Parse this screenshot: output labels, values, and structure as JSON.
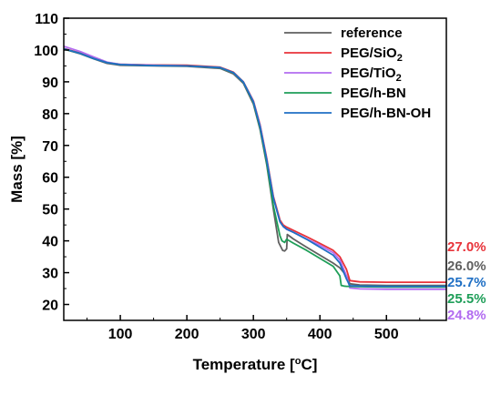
{
  "chart_data": {
    "type": "line",
    "title": "",
    "xlabel": "Temperature [",
    "xlabel_sup": "o",
    "xlabel_end": "C]",
    "ylabel": "Mass [%]",
    "xlim": [
      15,
      590
    ],
    "ylim": [
      15,
      110
    ],
    "xticks": [
      100,
      200,
      300,
      400,
      500
    ],
    "yticks": [
      20,
      30,
      40,
      50,
      60,
      70,
      80,
      90,
      100,
      110
    ],
    "grid": false,
    "legend": "top-right",
    "series": [
      {
        "name": "reference",
        "color": "#606060",
        "end_label": "26.0%",
        "x": [
          15,
          40,
          60,
          80,
          100,
          150,
          200,
          250,
          270,
          285,
          300,
          310,
          320,
          330,
          338,
          344,
          347,
          350,
          351,
          360,
          380,
          400,
          420,
          430,
          440,
          445,
          460,
          500,
          550,
          590
        ],
        "y": [
          100.3,
          98.8,
          97.2,
          95.8,
          95.2,
          95.0,
          94.9,
          94.2,
          92.5,
          89.5,
          83.0,
          75.0,
          64.0,
          50.0,
          39.5,
          37.0,
          36.8,
          37.5,
          42.0,
          40.6,
          38.0,
          35.5,
          33.0,
          31.5,
          29.0,
          26.5,
          26.1,
          26.0,
          26.0,
          26.0
        ]
      },
      {
        "name": "PEG/SiO",
        "name_sub": "2",
        "color": "#e8333a",
        "end_label": "27.0%",
        "x": [
          15,
          40,
          60,
          80,
          100,
          150,
          200,
          250,
          270,
          285,
          300,
          310,
          320,
          330,
          340,
          345,
          350,
          360,
          380,
          400,
          420,
          430,
          440,
          445,
          460,
          500,
          550,
          590
        ],
        "y": [
          100.5,
          99.0,
          97.4,
          96.0,
          95.5,
          95.3,
          95.2,
          94.6,
          93.0,
          90.0,
          84.0,
          76.5,
          66.0,
          54.0,
          46.5,
          45.0,
          44.3,
          43.3,
          41.3,
          39.2,
          37.0,
          35.0,
          31.0,
          27.5,
          27.1,
          27.0,
          27.0,
          27.0
        ]
      },
      {
        "name": "PEG/TiO",
        "name_sub": "2",
        "color": "#b26bf0",
        "end_label": "24.8%",
        "x": [
          15,
          40,
          60,
          80,
          100,
          150,
          200,
          250,
          270,
          285,
          300,
          310,
          320,
          330,
          340,
          345,
          350,
          360,
          380,
          400,
          420,
          430,
          440,
          445,
          460,
          500,
          550,
          590
        ],
        "y": [
          101.2,
          99.5,
          97.8,
          96.2,
          95.5,
          95.2,
          95.0,
          94.4,
          92.8,
          89.8,
          83.8,
          76.2,
          65.5,
          53.5,
          46.0,
          44.5,
          43.6,
          42.7,
          40.6,
          38.6,
          36.3,
          34.0,
          29.0,
          25.2,
          24.9,
          24.8,
          24.8,
          24.8
        ]
      },
      {
        "name": "PEG/h-BN",
        "color": "#1e9e58",
        "end_label": "25.5%",
        "x": [
          15,
          40,
          60,
          80,
          100,
          150,
          200,
          250,
          270,
          285,
          300,
          310,
          320,
          330,
          340,
          343,
          347,
          350,
          360,
          380,
          400,
          420,
          430,
          432,
          436,
          440,
          460,
          500,
          550,
          590
        ],
        "y": [
          100.3,
          98.9,
          97.3,
          96.0,
          95.4,
          95.1,
          95.0,
          94.4,
          92.8,
          89.8,
          83.5,
          75.5,
          64.5,
          51.0,
          41.5,
          40.0,
          39.5,
          40.5,
          39.3,
          37.0,
          34.5,
          32.0,
          29.0,
          26.0,
          25.8,
          25.7,
          25.6,
          25.5,
          25.5,
          25.5
        ]
      },
      {
        "name": "PEG/h-BN-OH",
        "color": "#1f6fc4",
        "end_label": "25.7%",
        "x": [
          15,
          40,
          60,
          80,
          100,
          150,
          200,
          250,
          270,
          285,
          300,
          310,
          320,
          330,
          340,
          345,
          350,
          360,
          380,
          400,
          420,
          430,
          440,
          445,
          460,
          500,
          550,
          590
        ],
        "y": [
          100.4,
          98.9,
          97.3,
          96.0,
          95.4,
          95.1,
          95.0,
          94.5,
          92.9,
          89.9,
          83.7,
          76.0,
          65.5,
          53.5,
          46.0,
          44.5,
          43.7,
          42.7,
          40.5,
          38.0,
          35.5,
          33.0,
          28.0,
          25.9,
          25.8,
          25.7,
          25.7,
          25.7
        ]
      }
    ],
    "end_labels_order": [
      {
        "text": "27.0%",
        "color": "#e8333a"
      },
      {
        "text": "26.0%",
        "color": "#606060"
      },
      {
        "text": "25.7%",
        "color": "#1f6fc4"
      },
      {
        "text": "25.5%",
        "color": "#1e9e58"
      },
      {
        "text": "24.8%",
        "color": "#b26bf0"
      }
    ]
  }
}
